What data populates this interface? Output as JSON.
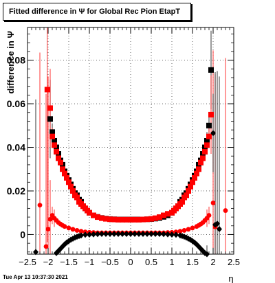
{
  "title": "Fitted difference in  Ψ  for Global Rec Pion EtapT",
  "footer_text": "Tue Apr 13 10:37:30 2021",
  "chart_data": {
    "type": "scatter",
    "title": "Fitted difference in  Ψ  for Global Rec Pion EtapT",
    "xlabel": "η",
    "ylabel": "difference in  Ψ",
    "xlim": [
      -2.5,
      2.5
    ],
    "ylim": [
      -0.009,
      0.095
    ],
    "grid": true,
    "x_ticks": [
      -2.5,
      -2,
      -1.5,
      -1,
      -0.5,
      0,
      0.5,
      1,
      1.5,
      2,
      2.5
    ],
    "x_tick_labels": [
      "−2.5",
      "−2",
      "−1.5",
      "−1",
      "−0.5",
      "0",
      "0.5",
      "1",
      "1.5",
      "2",
      "2.5"
    ],
    "y_ticks": [
      0,
      0.02,
      0.04,
      0.06,
      0.08
    ],
    "y_tick_labels": [
      "0",
      "0.02",
      "0.04",
      "0.06",
      "0.08"
    ],
    "colors": {
      "black": "#000000",
      "red": "#ff0000"
    },
    "series": [
      {
        "color": "#000000",
        "marker": "square",
        "x": [
          -1.95,
          -1.9,
          -1.85,
          -1.8,
          -1.75,
          -1.7,
          -1.65,
          -1.6,
          -1.55,
          -1.5,
          -1.45,
          -1.4,
          -1.35,
          -1.3,
          -1.25,
          -1.2,
          -1.15,
          -1.1,
          -1.05,
          -1.0,
          -0.9,
          -0.8,
          -0.7,
          -0.6,
          -0.5,
          -0.4,
          -0.3,
          -0.2,
          -0.1,
          0,
          0.1,
          0.2,
          0.3,
          0.4,
          0.5,
          0.6,
          0.7,
          0.8,
          0.9,
          1.0,
          1.05,
          1.1,
          1.15,
          1.2,
          1.25,
          1.3,
          1.35,
          1.4,
          1.45,
          1.5,
          1.55,
          1.6,
          1.65,
          1.7,
          1.75,
          1.8,
          1.85,
          1.9,
          1.95
        ],
        "y": [
          0.053,
          0.047,
          0.043,
          0.04,
          0.037,
          0.034,
          0.032,
          0.029,
          0.027,
          0.025,
          0.023,
          0.021,
          0.019,
          0.018,
          0.016,
          0.015,
          0.013,
          0.012,
          0.011,
          0.01,
          0.0088,
          0.0081,
          0.0076,
          0.0073,
          0.0071,
          0.007,
          0.0069,
          0.0069,
          0.0069,
          0.0069,
          0.0069,
          0.0069,
          0.0069,
          0.007,
          0.0071,
          0.0073,
          0.0076,
          0.0081,
          0.0088,
          0.01,
          0.011,
          0.012,
          0.013,
          0.015,
          0.016,
          0.018,
          0.019,
          0.021,
          0.023,
          0.025,
          0.027,
          0.029,
          0.032,
          0.034,
          0.037,
          0.04,
          0.043,
          0.05,
          0.0755
        ]
      },
      {
        "color": "#ff0000",
        "marker": "square",
        "x": [
          -2.02,
          -1.95,
          -1.9,
          -1.85,
          -1.8,
          -1.75,
          -1.7,
          -1.65,
          -1.6,
          -1.55,
          -1.5,
          -1.45,
          -1.4,
          -1.35,
          -1.3,
          -1.25,
          -1.2,
          -1.15,
          -1.1,
          -1.05,
          -1.0,
          -0.9,
          -0.8,
          -0.7,
          -0.6,
          -0.5,
          -0.4,
          -0.3,
          -0.2,
          -0.1,
          0,
          0.1,
          0.2,
          0.3,
          0.4,
          0.5,
          0.6,
          0.7,
          0.8,
          0.9,
          1.0,
          1.05,
          1.1,
          1.15,
          1.2,
          1.25,
          1.3,
          1.35,
          1.4,
          1.45,
          1.5,
          1.55,
          1.6,
          1.65,
          1.7,
          1.75,
          1.8,
          1.85,
          1.9,
          1.95
        ],
        "y": [
          0.0665,
          0.058,
          0.045,
          0.041,
          0.038,
          0.035,
          0.033,
          0.03,
          0.028,
          0.026,
          0.024,
          0.022,
          0.02,
          0.018,
          0.017,
          0.015,
          0.014,
          0.013,
          0.012,
          0.011,
          0.01,
          0.0088,
          0.008,
          0.0075,
          0.0072,
          0.007,
          0.0069,
          0.0068,
          0.0068,
          0.0068,
          0.0068,
          0.0068,
          0.0068,
          0.0069,
          0.007,
          0.0072,
          0.0075,
          0.008,
          0.0088,
          0.0095,
          0.01,
          0.011,
          0.012,
          0.013,
          0.014,
          0.015,
          0.017,
          0.018,
          0.02,
          0.022,
          0.024,
          0.026,
          0.028,
          0.03,
          0.033,
          0.035,
          0.038,
          0.041,
          0.045,
          0.055
        ]
      },
      {
        "color": "#ff0000",
        "marker": "circle",
        "x": [
          -2.2,
          -2.05,
          -2.0,
          -1.95,
          -1.9,
          -1.85,
          -1.8,
          -1.75,
          -1.7,
          -1.65,
          -1.6,
          -1.5,
          -1.4,
          -1.3,
          -1.2,
          -1.1,
          -1.0,
          -0.9,
          -0.8,
          -0.7,
          -0.6,
          -0.5,
          -0.4,
          -0.3,
          -0.2,
          -0.1,
          0,
          0.1,
          0.2,
          0.3,
          0.4,
          0.5,
          0.6,
          0.7,
          0.8,
          0.9,
          1.0,
          1.1,
          1.2,
          1.3,
          1.4,
          1.5,
          1.6,
          1.65,
          1.7,
          1.75,
          1.8,
          1.85,
          1.9,
          2.0,
          2.05,
          2.3
        ],
        "y": [
          0.0135,
          -0.0055,
          0.0025,
          0.007,
          0.0088,
          0.0075,
          0.0065,
          0.0055,
          0.0048,
          0.0042,
          0.0037,
          0.003,
          0.0024,
          0.0019,
          0.0015,
          0.0012,
          0.001,
          0.0009,
          0.0008,
          0.0008,
          0.0008,
          0.0008,
          0.0008,
          0.0008,
          0.0008,
          0.0008,
          0.0008,
          0.0008,
          0.0008,
          0.0008,
          0.0008,
          0.0008,
          0.0008,
          0.0008,
          0.0008,
          0.0009,
          0.001,
          0.0012,
          0.0015,
          0.0019,
          0.0024,
          0.003,
          0.0037,
          0.0042,
          0.0048,
          0.0055,
          0.0065,
          0.0075,
          0.0088,
          0.0145,
          0.0035,
          0.011
        ]
      },
      {
        "color": "#000000",
        "marker": "diamond",
        "x": [
          -2.3,
          -1.8,
          -1.75,
          -1.7,
          -1.65,
          -1.6,
          -1.55,
          -1.5,
          -1.45,
          -1.4,
          -1.35,
          -1.3,
          -1.25,
          -1.2,
          -1.1,
          -1.0,
          -0.9,
          -0.8,
          -0.7,
          -0.6,
          -0.5,
          -0.4,
          -0.3,
          -0.2,
          -0.1,
          0,
          0.1,
          0.2,
          0.3,
          0.4,
          0.5,
          0.6,
          0.7,
          0.8,
          0.9,
          1.0,
          1.1,
          1.2,
          1.25,
          1.3,
          1.35,
          1.4,
          1.45,
          1.5,
          1.55,
          1.6,
          1.65,
          1.7,
          1.75,
          1.8,
          1.85,
          2.0,
          2.05,
          2.1,
          2.15
        ],
        "y": [
          -0.008,
          -0.0085,
          -0.0075,
          -0.0065,
          -0.0055,
          -0.0045,
          -0.0037,
          -0.003,
          -0.0024,
          -0.0019,
          -0.0014,
          -0.001,
          -0.0007,
          -0.0004,
          -0.0001,
          0.0,
          0.0001,
          0.0002,
          0.0003,
          0.0003,
          0.0003,
          0.0003,
          0.0003,
          0.0003,
          0.0003,
          0.0003,
          0.0003,
          0.0003,
          0.0003,
          0.0003,
          0.0003,
          0.0003,
          0.0003,
          0.0002,
          0.0001,
          0.0,
          -0.0001,
          -0.0004,
          -0.0007,
          -0.001,
          -0.0014,
          -0.0019,
          -0.0024,
          -0.003,
          -0.0037,
          -0.0045,
          -0.0055,
          -0.0065,
          -0.0075,
          -0.0085,
          -0.009,
          0.0465,
          0.0045,
          0.005,
          0.0025
        ]
      }
    ]
  }
}
